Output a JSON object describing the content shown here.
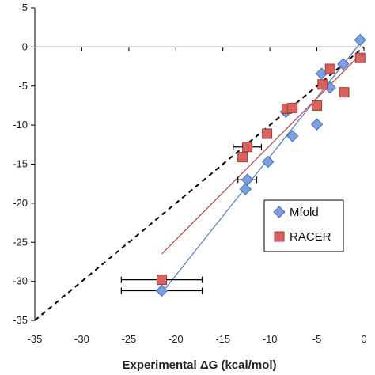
{
  "chart_data": {
    "type": "scatter",
    "title": "",
    "xlabel": "Experimental ΔG (kcal/mol)",
    "ylabel": "",
    "xlim": [
      -35,
      0
    ],
    "ylim": [
      -35,
      5
    ],
    "x_ticks": [
      "-35",
      "-30",
      "-25",
      "-20",
      "-15",
      "-10",
      "-5",
      "0"
    ],
    "y_ticks": [
      "5",
      "0",
      "-5",
      "-10",
      "-15",
      "-20",
      "-25",
      "-30",
      "-35"
    ],
    "x_tick_values": [
      -35,
      -30,
      -25,
      -20,
      -15,
      -10,
      -5,
      0
    ],
    "y_tick_values": [
      5,
      0,
      -5,
      -10,
      -15,
      -20,
      -25,
      -30,
      -35
    ],
    "grid": false,
    "legend_position": "lower-right",
    "reference_line": {
      "style": "dashed",
      "color": "#000000",
      "x": [
        -35,
        0
      ],
      "y": [
        -35,
        0
      ]
    },
    "series": [
      {
        "name": "Mfold",
        "marker": "diamond",
        "color": "#7c9fe0",
        "edge_color": "#4a6fb8",
        "line_color": "#5b82c6",
        "points": [
          {
            "x": -21.5,
            "y": -31.2,
            "xerr": 4.3
          },
          {
            "x": -12.6,
            "y": -18.2
          },
          {
            "x": -12.4,
            "y": -17.0,
            "xerr": 1.0
          },
          {
            "x": -10.2,
            "y": -14.7
          },
          {
            "x": -8.3,
            "y": -8.3
          },
          {
            "x": -7.6,
            "y": -11.4
          },
          {
            "x": -5.0,
            "y": -9.9
          },
          {
            "x": -4.5,
            "y": -3.4
          },
          {
            "x": -3.6,
            "y": -5.2
          },
          {
            "x": -2.2,
            "y": -2.2
          },
          {
            "x": -0.4,
            "y": 0.9
          }
        ],
        "fit": {
          "x": [
            -21.5,
            -0.4
          ],
          "y": [
            -31.5,
            0.5
          ]
        }
      },
      {
        "name": "RACER",
        "marker": "square",
        "color": "#d9625e",
        "edge_color": "#9f3b38",
        "line_color": "#b5524f",
        "points": [
          {
            "x": -21.5,
            "y": -29.8,
            "xerr": 4.3
          },
          {
            "x": -12.9,
            "y": -14.1
          },
          {
            "x": -12.4,
            "y": -12.8,
            "xerr": 1.5
          },
          {
            "x": -10.3,
            "y": -11.1
          },
          {
            "x": -8.2,
            "y": -7.9
          },
          {
            "x": -7.6,
            "y": -7.8
          },
          {
            "x": -5.0,
            "y": -7.5
          },
          {
            "x": -4.4,
            "y": -4.8
          },
          {
            "x": -3.6,
            "y": -2.8
          },
          {
            "x": -2.1,
            "y": -5.8
          },
          {
            "x": -0.4,
            "y": -1.4
          }
        ],
        "fit": {
          "x": [
            -21.5,
            -0.4
          ],
          "y": [
            -26.5,
            -1.0
          ]
        }
      }
    ]
  }
}
